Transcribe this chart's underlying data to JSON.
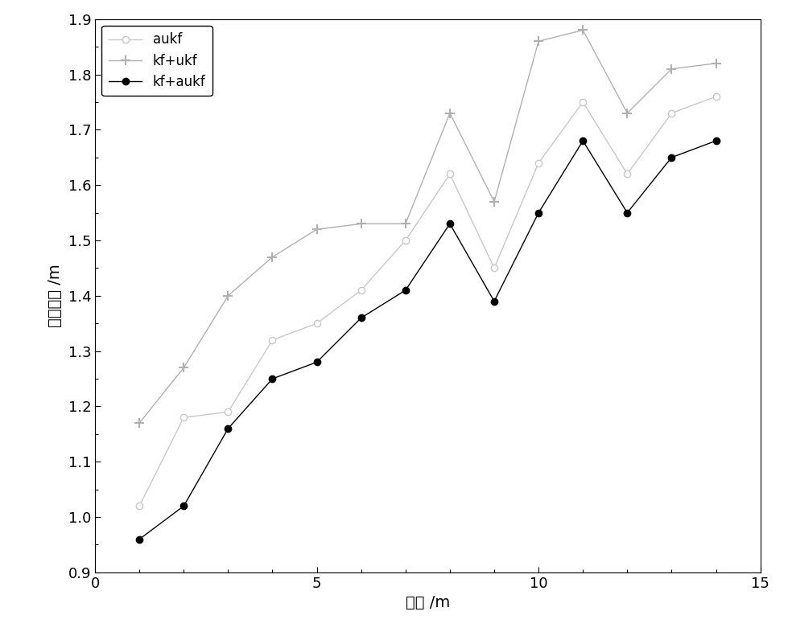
{
  "x": [
    1,
    2,
    3,
    4,
    5,
    6,
    7,
    8,
    9,
    10,
    11,
    12,
    13,
    14
  ],
  "aukf": [
    1.02,
    1.18,
    1.19,
    1.32,
    1.35,
    1.41,
    1.5,
    1.62,
    1.45,
    1.64,
    1.75,
    1.62,
    1.73,
    1.76
  ],
  "kf_ukf": [
    1.17,
    1.27,
    1.4,
    1.47,
    1.52,
    1.53,
    1.53,
    1.73,
    1.57,
    1.86,
    1.88,
    1.73,
    1.81,
    1.82
  ],
  "kf_aukf": [
    0.96,
    1.02,
    1.16,
    1.25,
    1.28,
    1.36,
    1.41,
    1.53,
    1.39,
    1.55,
    1.68,
    1.55,
    1.65,
    1.68
  ],
  "aukf_color": "#c8c8c8",
  "kf_ukf_color": "#b0b0b0",
  "kf_aukf_color": "#000000",
  "xlabel": "距離 /m",
  "ylabel": "定位误差 /m",
  "xlim": [
    0,
    15
  ],
  "ylim": [
    0.9,
    1.9
  ],
  "xticks_major": [
    0,
    5,
    10,
    15
  ],
  "xticks_minor": [
    1,
    2,
    3,
    4,
    6,
    7,
    8,
    9,
    11,
    12,
    13,
    14
  ],
  "yticks": [
    0.9,
    1.0,
    1.1,
    1.2,
    1.3,
    1.4,
    1.5,
    1.6,
    1.7,
    1.8,
    1.9
  ],
  "legend_labels": [
    "aukf",
    "kf+ukf",
    "kf+aukf"
  ],
  "figsize": [
    9.84,
    7.91
  ],
  "dpi": 100
}
